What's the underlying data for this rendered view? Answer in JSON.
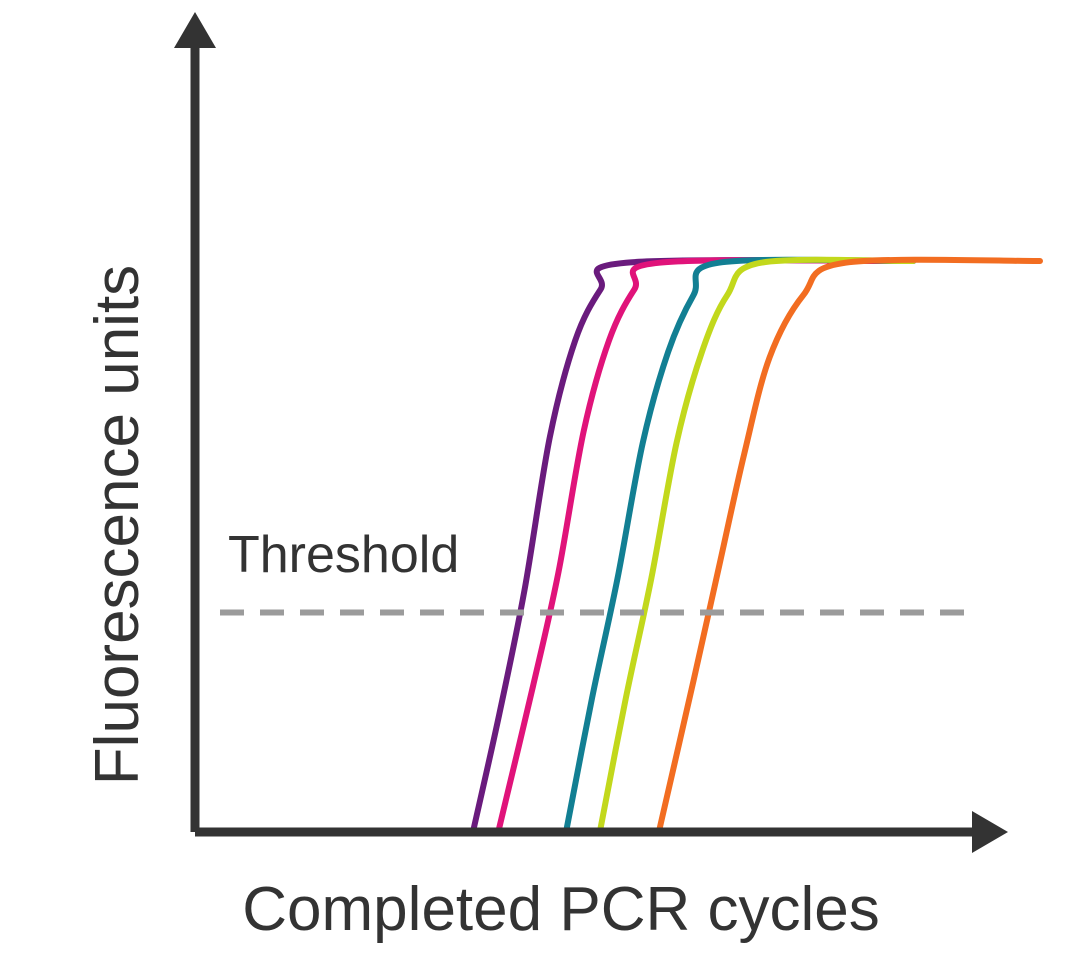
{
  "chart_data": {
    "type": "line",
    "xlabel": "Completed PCR cycles",
    "ylabel": "Fluorescence units",
    "threshold": {
      "label": "Threshold",
      "value": 0.38
    },
    "xlim": [
      0,
      1
    ],
    "ylim": [
      0,
      1
    ],
    "grid": false,
    "series": [
      {
        "color": "#6a1b7d",
        "x": [
          0.33,
          0.36,
          0.39,
          0.42,
          0.45,
          0.48,
          0.51,
          0.85
        ],
        "y": [
          0.0,
          0.2,
          0.42,
          0.69,
          0.86,
          0.95,
          0.997,
          1.0
        ]
      },
      {
        "color": "#e0137a",
        "x": [
          0.36,
          0.4,
          0.43,
          0.46,
          0.49,
          0.52,
          0.55,
          0.85
        ],
        "y": [
          0.0,
          0.25,
          0.45,
          0.7,
          0.86,
          0.95,
          0.997,
          1.0
        ]
      },
      {
        "color": "#127f93",
        "x": [
          0.44,
          0.47,
          0.5,
          0.53,
          0.56,
          0.59,
          0.62,
          0.85
        ],
        "y": [
          0.0,
          0.23,
          0.44,
          0.68,
          0.84,
          0.94,
          0.997,
          1.0
        ]
      },
      {
        "color": "#c2d81c",
        "x": [
          0.48,
          0.51,
          0.54,
          0.57,
          0.6,
          0.63,
          0.67,
          0.85
        ],
        "y": [
          0.0,
          0.23,
          0.44,
          0.68,
          0.84,
          0.94,
          0.997,
          1.0
        ]
      },
      {
        "color": "#f26d21",
        "x": [
          0.55,
          0.59,
          0.62,
          0.65,
          0.68,
          0.72,
          0.77,
          1.0
        ],
        "y": [
          0.0,
          0.26,
          0.46,
          0.66,
          0.83,
          0.94,
          0.997,
          1.0
        ]
      }
    ]
  }
}
